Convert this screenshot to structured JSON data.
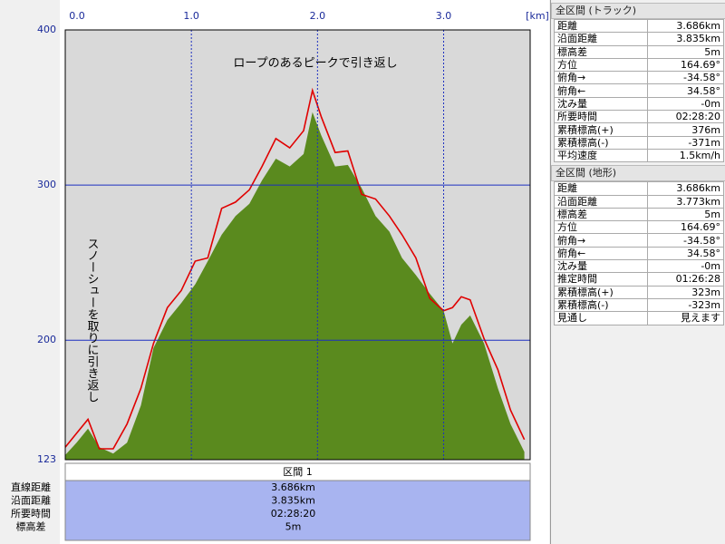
{
  "chart_data": {
    "type": "area",
    "annotations": [
      "ロープのあるピークで引き返し",
      "スノーシューを取りに引き返し"
    ],
    "x_label": "[km]",
    "xlim": [
      0,
      3.686
    ],
    "xticks": [
      {
        "value": 0,
        "label": "0.0"
      },
      {
        "value": 1,
        "label": "1.0"
      },
      {
        "value": 2,
        "label": "2.0"
      },
      {
        "value": 3,
        "label": "3.0"
      }
    ],
    "ylim": [
      123,
      400
    ],
    "yticks": [
      123,
      200,
      300,
      400
    ],
    "grid": true,
    "x": [
      0.0,
      0.09,
      0.18,
      0.27,
      0.38,
      0.49,
      0.6,
      0.7,
      0.81,
      0.92,
      1.03,
      1.13,
      1.24,
      1.35,
      1.46,
      1.56,
      1.67,
      1.78,
      1.89,
      1.96,
      2.03,
      2.14,
      2.24,
      2.35,
      2.46,
      2.57,
      2.67,
      2.78,
      2.89,
      3.0,
      3.07,
      3.14,
      3.21,
      3.32,
      3.43,
      3.53,
      3.64
    ],
    "series": [
      {
        "color": "#e00000",
        "fill": false,
        "values": [
          131,
          140,
          149,
          130,
          130,
          146,
          169,
          198,
          221,
          232,
          251,
          253,
          285,
          289,
          297,
          312,
          330,
          324,
          335,
          361,
          344,
          321,
          322,
          294,
          291,
          280,
          268,
          253,
          227,
          219,
          221,
          228,
          226,
          201,
          181,
          155,
          136
        ]
      },
      {
        "color": "#5a8a1e",
        "fill": true,
        "values": [
          126,
          134,
          143,
          131,
          127,
          134,
          158,
          195,
          213,
          224,
          236,
          251,
          268,
          280,
          288,
          303,
          317,
          312,
          320,
          347,
          332,
          312,
          313,
          298,
          280,
          270,
          253,
          242,
          230,
          219,
          198,
          210,
          216,
          198,
          169,
          146,
          128
        ]
      }
    ]
  },
  "section": {
    "title": "区間 1",
    "labels": [
      "直線距離",
      "沿面距離",
      "所要時間",
      "標高差"
    ],
    "values": [
      "3.686km",
      "3.835km",
      "02:28:20",
      "5m"
    ]
  },
  "panels": [
    {
      "title": "全区間 (トラック)",
      "rows": [
        [
          "距離",
          "3.686km"
        ],
        [
          "沿面距離",
          "3.835km"
        ],
        [
          "標高差",
          "5m"
        ],
        [
          "方位",
          "164.69°"
        ],
        [
          "俯角→",
          "-34.58°"
        ],
        [
          "俯角←",
          "34.58°"
        ],
        [
          "沈み量",
          "-0m"
        ],
        [
          "所要時間",
          "02:28:20"
        ],
        [
          "累積標高(+)",
          "376m"
        ],
        [
          "累積標高(-)",
          "-371m"
        ],
        [
          "平均速度",
          "1.5km/h"
        ]
      ]
    },
    {
      "title": "全区間 (地形)",
      "rows": [
        [
          "距離",
          "3.686km"
        ],
        [
          "沿面距離",
          "3.773km"
        ],
        [
          "標高差",
          "5m"
        ],
        [
          "方位",
          "164.69°"
        ],
        [
          "俯角→",
          "-34.58°"
        ],
        [
          "俯角←",
          "34.58°"
        ],
        [
          "沈み量",
          "-0m"
        ],
        [
          "推定時間",
          "01:26:28"
        ],
        [
          "累積標高(+)",
          "323m"
        ],
        [
          "累積標高(-)",
          "-323m"
        ],
        [
          "見通し",
          "見えます"
        ]
      ]
    }
  ]
}
